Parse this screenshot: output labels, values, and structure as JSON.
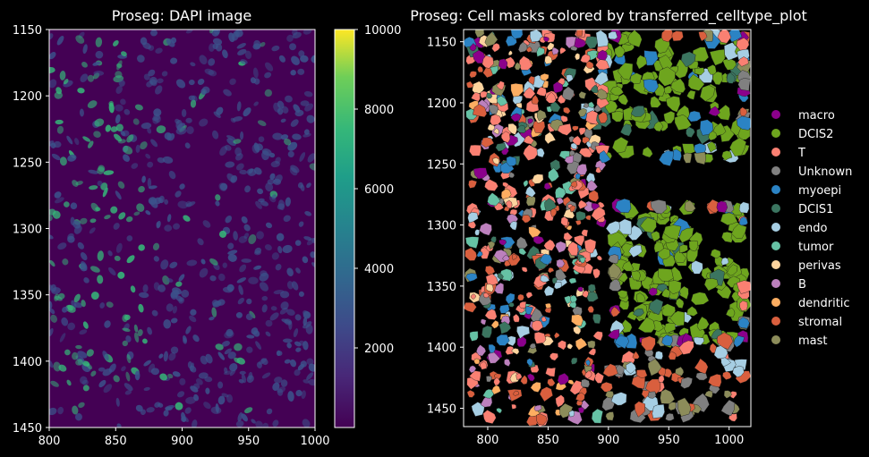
{
  "chart_data": [
    {
      "type": "heatmap",
      "title": "Proseg: DAPI image",
      "xlim": [
        800,
        1000
      ],
      "ylim": [
        1450,
        1150
      ],
      "x_ticks": [
        "800",
        "850",
        "900",
        "950",
        "1000"
      ],
      "y_ticks": [
        "1150",
        "1200",
        "1250",
        "1300",
        "1350",
        "1400",
        "1450"
      ],
      "colormap": "viridis",
      "colorbar": {
        "range": [
          0,
          10000
        ],
        "ticks": [
          "2000",
          "4000",
          "6000",
          "8000",
          "10000"
        ]
      },
      "background_color": "#440154",
      "nuclei_color_low": "#3b528b",
      "nuclei_color_high": "#35b779"
    },
    {
      "type": "scatter",
      "title": "Proseg: Cell masks colored by transferred_celltype_plot",
      "xlim": [
        780,
        1018
      ],
      "ylim": [
        1465,
        1140
      ],
      "x_ticks": [
        "800",
        "850",
        "900",
        "950",
        "1000"
      ],
      "y_ticks": [
        "1150",
        "1200",
        "1250",
        "1300",
        "1350",
        "1400",
        "1450"
      ],
      "legend_placement": "right",
      "legend": [
        {
          "name": "macro",
          "color": "#8b008b"
        },
        {
          "name": "DCIS2",
          "color": "#6ea51e"
        },
        {
          "name": "T",
          "color": "#fa8072"
        },
        {
          "name": "Unknown",
          "color": "#808080"
        },
        {
          "name": "myoepi",
          "color": "#2b83c4"
        },
        {
          "name": "DCIS1",
          "color": "#3b7560"
        },
        {
          "name": "endo",
          "color": "#a6cee3"
        },
        {
          "name": "tumor",
          "color": "#66c2a5"
        },
        {
          "name": "perivas",
          "color": "#fdd49e"
        },
        {
          "name": "B",
          "color": "#bc80bd"
        },
        {
          "name": "dendritic",
          "color": "#fdae61"
        },
        {
          "name": "stromal",
          "color": "#d95f3e"
        },
        {
          "name": "mast",
          "color": "#8c8c5a"
        }
      ]
    }
  ]
}
